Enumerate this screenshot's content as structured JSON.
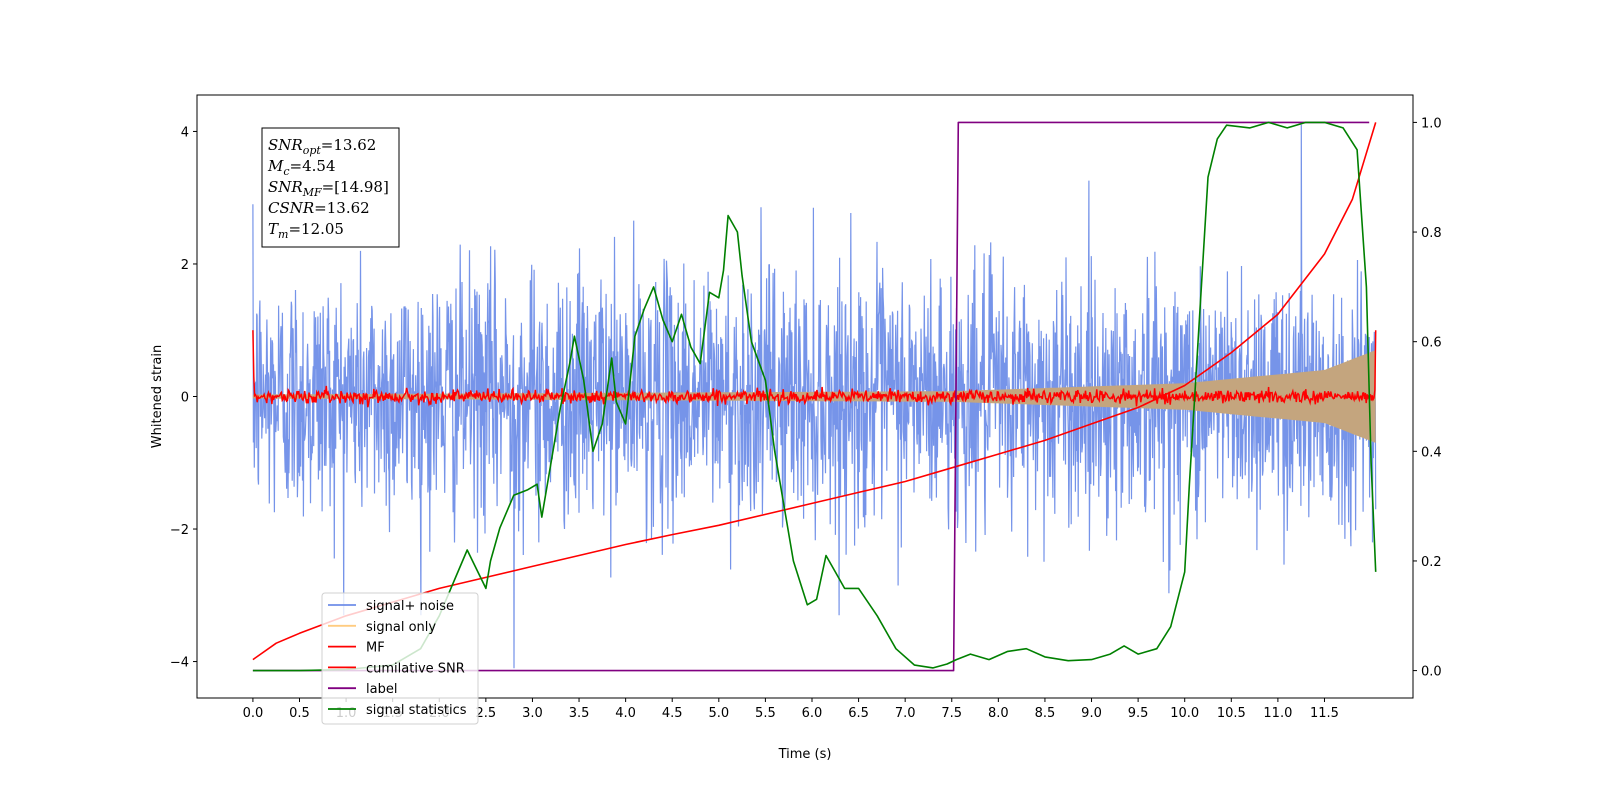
{
  "chart_data": {
    "type": "line",
    "xlabel": "Time (s)",
    "ylabel": "Whitened strain",
    "xlim": [
      -0.6,
      12.45
    ],
    "ylim_left": [
      -4.55,
      4.55
    ],
    "ylim_right": [
      -0.05,
      1.05
    ],
    "x_ticks": [
      "0.0",
      "0.5",
      "1.0",
      "1.5",
      "2.0",
      "2.5",
      "3.0",
      "3.5",
      "4.0",
      "4.5",
      "5.0",
      "5.5",
      "6.0",
      "6.5",
      "7.0",
      "7.5",
      "8.0",
      "8.5",
      "9.0",
      "9.5",
      "10.0",
      "10.5",
      "11.0",
      "11.5"
    ],
    "y_ticks_left": [
      "−4",
      "−2",
      "0",
      "2",
      "4"
    ],
    "y_ticks_right": [
      "0.0",
      "0.2",
      "0.4",
      "0.6",
      "0.8",
      "1.0"
    ],
    "grid": false,
    "legend_placement": "lower-left",
    "annotation": {
      "lines": [
        {
          "sym": "SNR",
          "sub": "opt",
          "value": "=13.62"
        },
        {
          "sym": "M",
          "sub": "c",
          "value": "=4.54"
        },
        {
          "sym": "SNR",
          "sub": "MF",
          "value": "=[14.98]"
        },
        {
          "sym": "CSNR",
          "sub": "",
          "value": "=13.62"
        },
        {
          "sym": "T",
          "sub": "m",
          "value": "=12.05"
        }
      ]
    },
    "series": [
      {
        "name": "signal+ noise",
        "color": "#6f8ee8",
        "axis": "left",
        "kind": "noise",
        "x_range": [
          0,
          12.05
        ],
        "std": 0.95,
        "outliers": [
          [
            0.0,
            2.9
          ],
          [
            2.8,
            -4.1
          ],
          [
            11.25,
            4.1
          ]
        ]
      },
      {
        "name": "signal only",
        "color": "#ffcc80",
        "axis": "left",
        "kind": "envelope",
        "x_range": [
          0,
          12.05
        ],
        "amplitude": [
          [
            0,
            0.03
          ],
          [
            7.5,
            0.08
          ],
          [
            10.0,
            0.2
          ],
          [
            11.5,
            0.4
          ],
          [
            12.05,
            0.7
          ]
        ]
      },
      {
        "name": "MF",
        "color": "#ff0000",
        "axis": "left",
        "kind": "mf",
        "x_range": [
          0,
          12.05
        ],
        "start": 1.0,
        "end": 1.0,
        "std": 0.05
      },
      {
        "name": "cumilative SNR",
        "color": "#ff0000",
        "axis": "right",
        "points": [
          [
            0.0,
            0.02
          ],
          [
            0.25,
            0.05
          ],
          [
            0.5,
            0.068
          ],
          [
            1.0,
            0.1
          ],
          [
            1.5,
            0.125
          ],
          [
            2.0,
            0.15
          ],
          [
            2.5,
            0.17
          ],
          [
            3.0,
            0.19
          ],
          [
            3.5,
            0.21
          ],
          [
            4.0,
            0.23
          ],
          [
            4.5,
            0.248
          ],
          [
            5.0,
            0.265
          ],
          [
            5.5,
            0.285
          ],
          [
            6.0,
            0.305
          ],
          [
            6.5,
            0.325
          ],
          [
            7.0,
            0.345
          ],
          [
            7.5,
            0.37
          ],
          [
            8.0,
            0.395
          ],
          [
            8.5,
            0.42
          ],
          [
            9.0,
            0.45
          ],
          [
            9.5,
            0.48
          ],
          [
            10.0,
            0.52
          ],
          [
            10.5,
            0.58
          ],
          [
            11.0,
            0.65
          ],
          [
            11.5,
            0.76
          ],
          [
            11.8,
            0.86
          ],
          [
            12.05,
            1.0
          ]
        ]
      },
      {
        "name": "label",
        "color": "#800080",
        "axis": "right",
        "points": [
          [
            0.0,
            0.0
          ],
          [
            7.52,
            0.0
          ],
          [
            7.57,
            1.0
          ],
          [
            11.98,
            1.0
          ]
        ]
      },
      {
        "name": "signal statistics",
        "color": "#008000",
        "axis": "right",
        "points": [
          [
            0.0,
            0.0
          ],
          [
            0.5,
            0.0
          ],
          [
            1.0,
            0.002
          ],
          [
            1.5,
            0.01
          ],
          [
            1.8,
            0.04
          ],
          [
            2.0,
            0.1
          ],
          [
            2.1,
            0.14
          ],
          [
            2.3,
            0.22
          ],
          [
            2.5,
            0.15
          ],
          [
            2.55,
            0.2
          ],
          [
            2.65,
            0.26
          ],
          [
            2.8,
            0.32
          ],
          [
            2.95,
            0.33
          ],
          [
            3.05,
            0.34
          ],
          [
            3.1,
            0.28
          ],
          [
            3.2,
            0.38
          ],
          [
            3.3,
            0.48
          ],
          [
            3.4,
            0.56
          ],
          [
            3.45,
            0.61
          ],
          [
            3.55,
            0.53
          ],
          [
            3.65,
            0.4
          ],
          [
            3.75,
            0.45
          ],
          [
            3.85,
            0.57
          ],
          [
            3.9,
            0.49
          ],
          [
            4.0,
            0.45
          ],
          [
            4.1,
            0.61
          ],
          [
            4.2,
            0.66
          ],
          [
            4.3,
            0.7
          ],
          [
            4.4,
            0.64
          ],
          [
            4.5,
            0.6
          ],
          [
            4.6,
            0.65
          ],
          [
            4.7,
            0.59
          ],
          [
            4.8,
            0.56
          ],
          [
            4.9,
            0.69
          ],
          [
            5.0,
            0.68
          ],
          [
            5.05,
            0.73
          ],
          [
            5.1,
            0.83
          ],
          [
            5.2,
            0.8
          ],
          [
            5.25,
            0.72
          ],
          [
            5.35,
            0.6
          ],
          [
            5.5,
            0.53
          ],
          [
            5.6,
            0.4
          ],
          [
            5.8,
            0.2
          ],
          [
            5.95,
            0.12
          ],
          [
            6.05,
            0.13
          ],
          [
            6.15,
            0.21
          ],
          [
            6.25,
            0.18
          ],
          [
            6.35,
            0.15
          ],
          [
            6.5,
            0.15
          ],
          [
            6.7,
            0.1
          ],
          [
            6.9,
            0.04
          ],
          [
            7.1,
            0.01
          ],
          [
            7.3,
            0.005
          ],
          [
            7.45,
            0.012
          ],
          [
            7.55,
            0.02
          ],
          [
            7.7,
            0.03
          ],
          [
            7.9,
            0.02
          ],
          [
            8.1,
            0.035
          ],
          [
            8.3,
            0.04
          ],
          [
            8.5,
            0.025
          ],
          [
            8.75,
            0.018
          ],
          [
            9.0,
            0.02
          ],
          [
            9.2,
            0.03
          ],
          [
            9.35,
            0.045
          ],
          [
            9.5,
            0.03
          ],
          [
            9.7,
            0.04
          ],
          [
            9.85,
            0.08
          ],
          [
            10.0,
            0.18
          ],
          [
            10.05,
            0.34
          ],
          [
            10.15,
            0.62
          ],
          [
            10.25,
            0.9
          ],
          [
            10.35,
            0.97
          ],
          [
            10.45,
            0.995
          ],
          [
            10.7,
            0.99
          ],
          [
            10.9,
            1.0
          ],
          [
            11.1,
            0.99
          ],
          [
            11.3,
            1.0
          ],
          [
            11.5,
            1.0
          ],
          [
            11.7,
            0.99
          ],
          [
            11.85,
            0.95
          ],
          [
            11.95,
            0.7
          ],
          [
            12.0,
            0.38
          ],
          [
            12.05,
            0.18
          ]
        ]
      }
    ]
  }
}
